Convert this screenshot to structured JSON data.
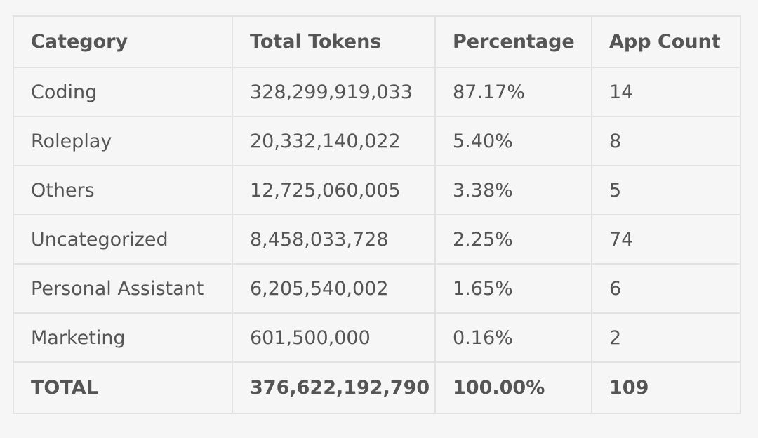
{
  "table": {
    "headers": [
      "Category",
      "Total Tokens",
      "Percentage",
      "App Count"
    ],
    "rows": [
      [
        "Coding",
        "328,299,919,033",
        "87.17%",
        "14"
      ],
      [
        "Roleplay",
        "20,332,140,022",
        "5.40%",
        "8"
      ],
      [
        "Others",
        "12,725,060,005",
        "3.38%",
        "5"
      ],
      [
        "Uncategorized",
        "8,458,033,728",
        "2.25%",
        "74"
      ],
      [
        "Personal Assistant",
        "6,205,540,002",
        "1.65%",
        "6"
      ],
      [
        "Marketing",
        "601,500,000",
        "0.16%",
        "2"
      ]
    ],
    "total": [
      "TOTAL",
      "376,622,192,790",
      "100.00%",
      "109"
    ]
  }
}
